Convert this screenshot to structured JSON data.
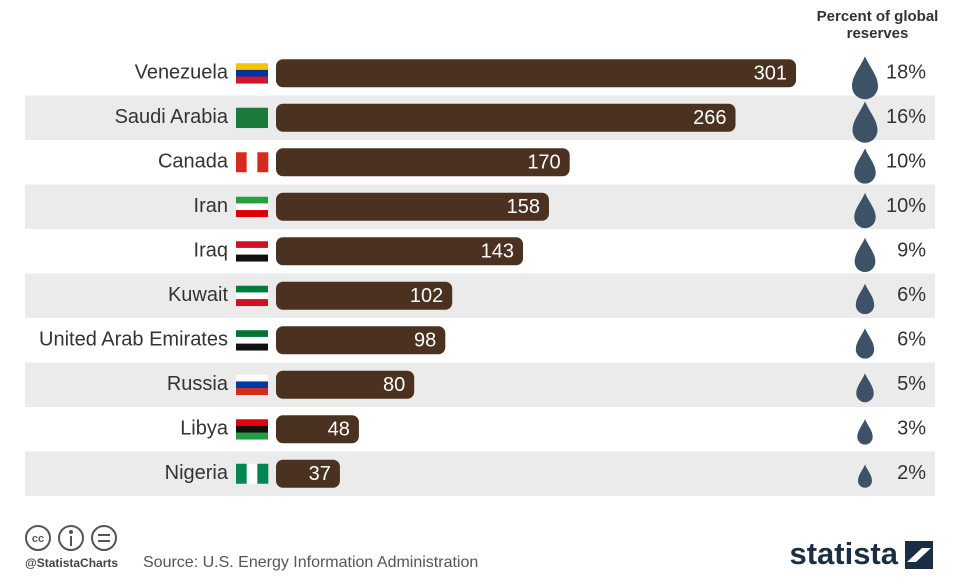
{
  "chart_data": {
    "type": "bar",
    "orientation": "horizontal",
    "categories": [
      "Venezuela",
      "Saudi Arabia",
      "Canada",
      "Iran",
      "Iraq",
      "Kuwait",
      "United Arab Emirates",
      "Russia",
      "Libya",
      "Nigeria"
    ],
    "values": [
      301,
      266,
      170,
      158,
      143,
      102,
      98,
      80,
      48,
      37
    ],
    "color": "#4b3220",
    "shares": {
      "title": "Percent of global reserves",
      "color": "#3d5266",
      "values": [
        18,
        16,
        10,
        10,
        9,
        6,
        6,
        5,
        3,
        2
      ],
      "value_labels": [
        "18%",
        "16%",
        "10%",
        "10%",
        "9%",
        "6%",
        "6%",
        "5%",
        "3%",
        "2%"
      ]
    }
  },
  "footer": {
    "credit": "@StatistaCharts",
    "source": "Source: U.S. Energy Information Administration",
    "brand": "statista"
  }
}
